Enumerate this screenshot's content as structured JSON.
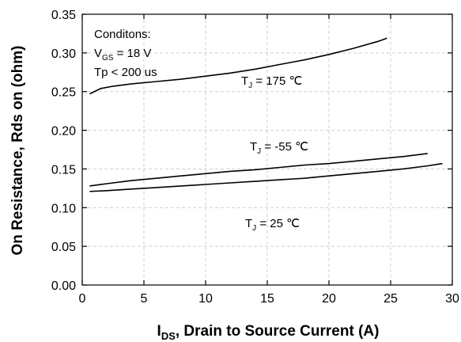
{
  "chart_data": {
    "type": "line",
    "xlabel": "I_DS, Drain to Source Current (A)",
    "xlabel_parts": {
      "main": "I",
      "sub": "DS",
      "rest": ", Drain to Source Current (A)"
    },
    "ylabel": "On Resistance, Rds on (ohm)",
    "xlim": [
      0,
      30
    ],
    "ylim": [
      0.0,
      0.35
    ],
    "xticks": [
      "0",
      "5",
      "10",
      "15",
      "20",
      "25",
      "30"
    ],
    "yticks": [
      "0.00",
      "0.05",
      "0.10",
      "0.15",
      "0.20",
      "0.25",
      "0.30",
      "0.35"
    ],
    "grid": true,
    "conditions": {
      "line1": "Conditons:",
      "line2": {
        "main": "V",
        "sub": "GS",
        "rest": " = 18 V"
      },
      "line3": "Tp < 200 us"
    },
    "annotations": [
      {
        "main": "T",
        "sub": "J",
        "rest": " = 175 ℃"
      },
      {
        "main": "T",
        "sub": "J",
        "rest": " = -55 ℃"
      },
      {
        "main": "T",
        "sub": "J",
        "rest": " = 25 ℃"
      }
    ],
    "series": [
      {
        "x": [
          0.6,
          1.5,
          2.5,
          4,
          6,
          8,
          10,
          12,
          14,
          16,
          18,
          20,
          22,
          24,
          24.7
        ],
        "y": [
          0.247,
          0.254,
          0.257,
          0.26,
          0.263,
          0.266,
          0.27,
          0.274,
          0.279,
          0.285,
          0.291,
          0.298,
          0.306,
          0.315,
          0.319
        ]
      },
      {
        "x": [
          0.6,
          2,
          4,
          6,
          8,
          10,
          12,
          14,
          16,
          18,
          20,
          22,
          24,
          26,
          28
        ],
        "y": [
          0.128,
          0.131,
          0.135,
          0.138,
          0.141,
          0.144,
          0.147,
          0.149,
          0.152,
          0.155,
          0.157,
          0.16,
          0.163,
          0.166,
          0.17
        ]
      },
      {
        "x": [
          0.6,
          2,
          4,
          6,
          8,
          10,
          12,
          14,
          16,
          18,
          20,
          22,
          24,
          26,
          28,
          29.2
        ],
        "y": [
          0.121,
          0.122,
          0.124,
          0.126,
          0.128,
          0.13,
          0.132,
          0.134,
          0.136,
          0.138,
          0.141,
          0.144,
          0.147,
          0.15,
          0.154,
          0.157
        ]
      }
    ]
  }
}
